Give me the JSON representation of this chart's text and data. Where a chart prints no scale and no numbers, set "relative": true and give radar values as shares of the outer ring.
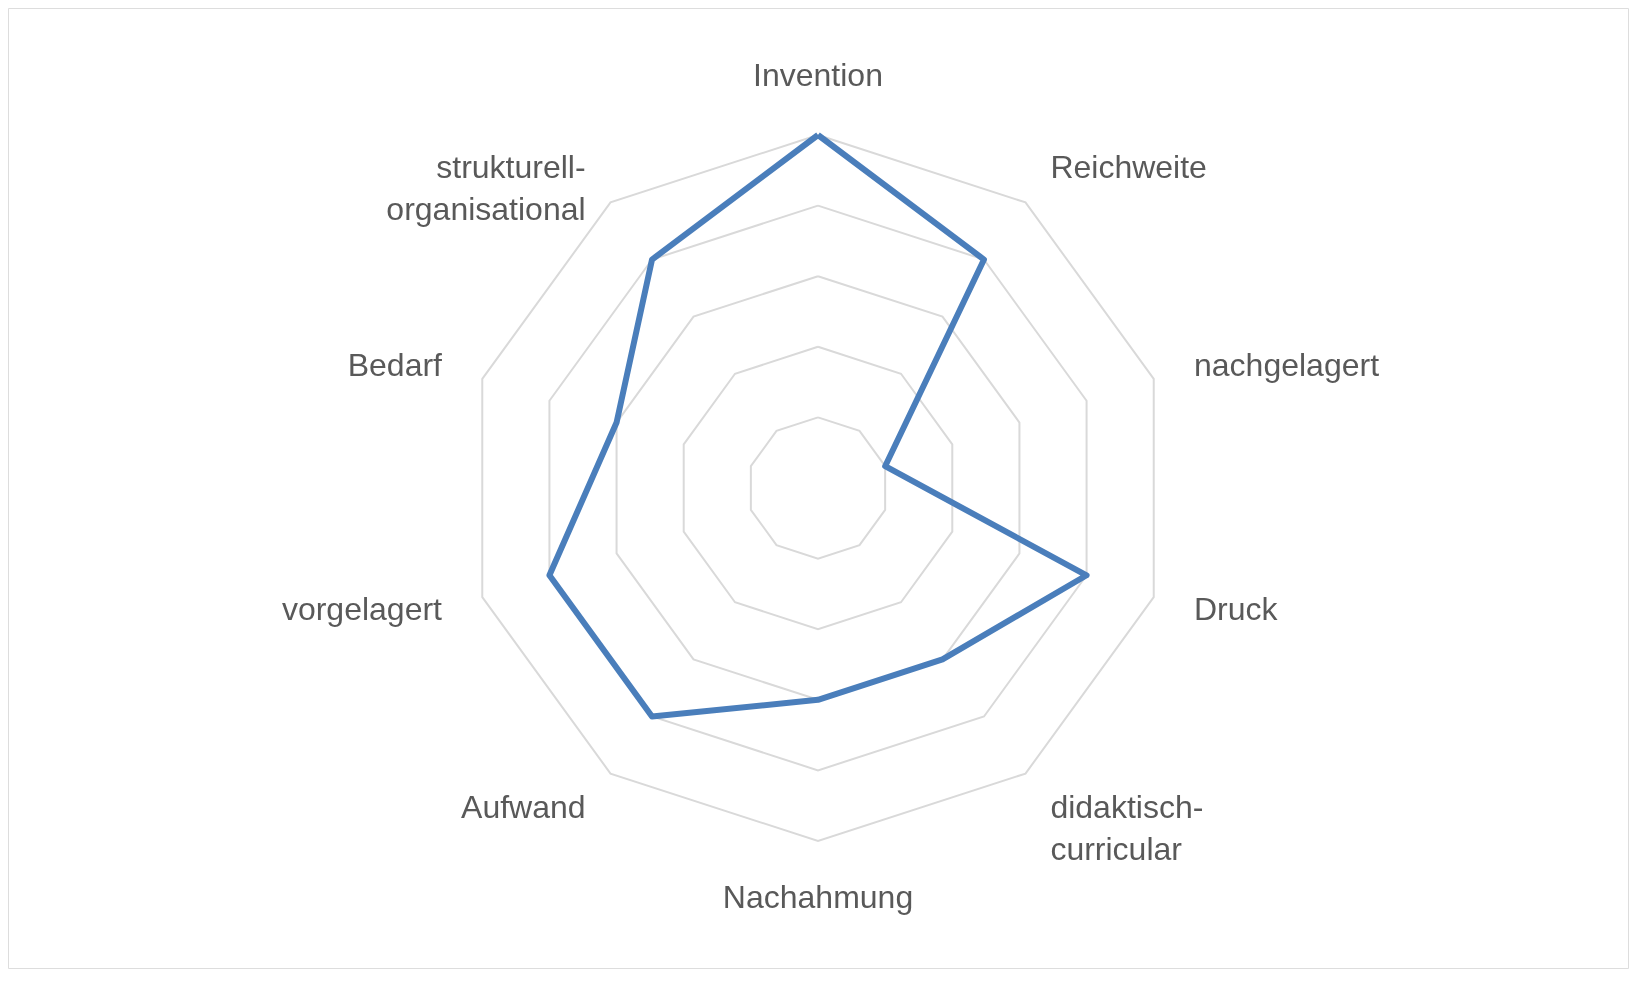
{
  "chart_data": {
    "type": "radar",
    "relative": true,
    "grid": true,
    "categories": [
      "Invention",
      "Reichweite",
      "nachgelagert",
      "Druck",
      "didaktisch-curricular",
      "Nachahmung",
      "Aufwand",
      "vorgelagert",
      "Bedarf",
      "strukturell-organisational"
    ],
    "series": [
      {
        "color": "#4a7ebb",
        "values": [
          1.0,
          0.8,
          0.2,
          0.8,
          0.6,
          0.6,
          0.8,
          0.8,
          0.6,
          0.8
        ]
      }
    ]
  }
}
